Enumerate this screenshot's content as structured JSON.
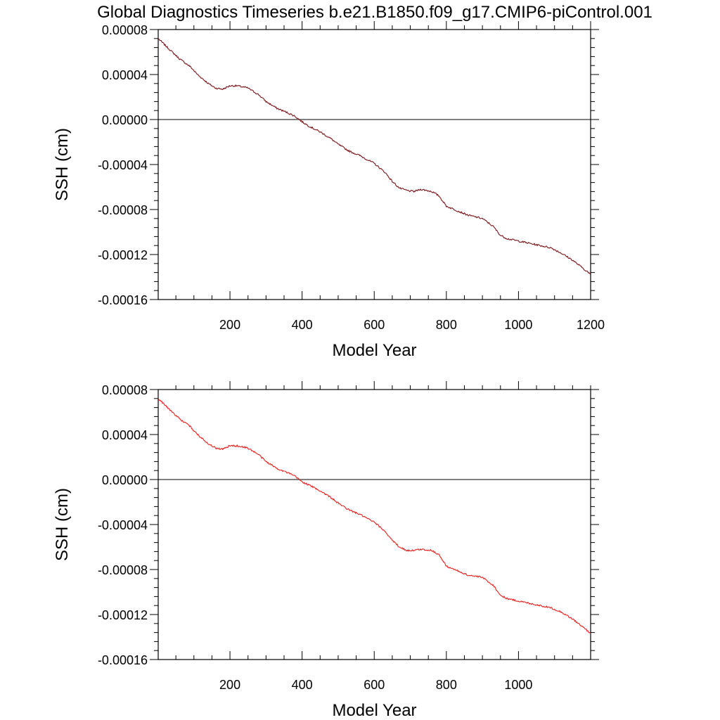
{
  "figure_title": "Global Diagnostics Timeseries b.e21.B1850.f09_g17.CMIP6-piControl.001",
  "chart_data": [
    {
      "type": "line",
      "title": "",
      "xlabel": "Model Year",
      "ylabel": "SSH (cm)",
      "xlim": [
        1,
        1200
      ],
      "ylim": [
        -0.00016,
        8e-05
      ],
      "xticks": [
        200,
        400,
        600,
        800,
        1000,
        1200
      ],
      "xtick_labels": [
        "200",
        "400",
        "600",
        "800",
        "1000",
        "1200"
      ],
      "yticks": [
        8e-05,
        4e-05,
        0.0,
        -4e-05,
        -8e-05,
        -0.00012,
        -0.00016
      ],
      "ytick_labels": [
        "0.00008",
        "0.00004",
        "0.00000",
        "-0.00004",
        "-0.00008",
        "-0.00012",
        "-0.00016"
      ],
      "reference_line_y": 0.0,
      "grid": false,
      "series": [
        {
          "name": "SSH",
          "color": "#7a1418",
          "x": [
            1,
            30,
            60,
            90,
            110,
            140,
            160,
            180,
            200,
            220,
            250,
            280,
            300,
            330,
            360,
            380,
            400,
            420,
            450,
            480,
            500,
            530,
            560,
            600,
            630,
            650,
            670,
            690,
            710,
            730,
            760,
            780,
            800,
            830,
            860,
            900,
            930,
            950,
            970,
            1000,
            1030,
            1060,
            1090,
            1120,
            1150,
            1170,
            1190,
            1200
          ],
          "values": [
            7.2e-05,
            6.3e-05,
            5.4e-05,
            4.7e-05,
            4e-05,
            3.2e-05,
            2.8e-05,
            2.7e-05,
            3e-05,
            3e-05,
            2.8e-05,
            2.2e-05,
            1.6e-05,
            1e-05,
            6e-06,
            3e-06,
            -2e-06,
            -6e-06,
            -1.1e-05,
            -1.7e-05,
            -2.2e-05,
            -2.8e-05,
            -3.2e-05,
            -3.9e-05,
            -4.7e-05,
            -5.5e-05,
            -6.1e-05,
            -6.3e-05,
            -6.4e-05,
            -6.2e-05,
            -6.4e-05,
            -6.8e-05,
            -7.7e-05,
            -8.1e-05,
            -8.5e-05,
            -8.8e-05,
            -9.5e-05,
            -0.000103,
            -0.000106,
            -0.000108,
            -0.00011,
            -0.000112,
            -0.000114,
            -0.000119,
            -0.000125,
            -0.00013,
            -0.000135,
            -0.000138
          ]
        }
      ]
    },
    {
      "type": "line",
      "title": "",
      "xlabel": "Model Year",
      "ylabel": "SSH (cm)",
      "xlim": [
        1,
        1200
      ],
      "ylim": [
        -0.00016,
        8e-05
      ],
      "xticks": [
        200,
        400,
        600,
        800,
        1000
      ],
      "xtick_labels": [
        "200",
        "400",
        "600",
        "800",
        "1000"
      ],
      "yticks": [
        8e-05,
        4e-05,
        0.0,
        -4e-05,
        -8e-05,
        -0.00012,
        -0.00016
      ],
      "ytick_labels": [
        "0.00008",
        "0.00004",
        "0.00000",
        "-0.00004",
        "-0.00008",
        "-0.00012",
        "-0.00016"
      ],
      "reference_line_y": 0.0,
      "grid": false,
      "series": [
        {
          "name": "SSH",
          "color": "#e8201c",
          "x": [
            1,
            30,
            60,
            90,
            110,
            140,
            160,
            180,
            200,
            220,
            250,
            280,
            300,
            330,
            360,
            380,
            400,
            420,
            450,
            480,
            500,
            530,
            560,
            600,
            630,
            650,
            670,
            690,
            710,
            730,
            760,
            780,
            800,
            830,
            860,
            900,
            930,
            950,
            970,
            1000,
            1030,
            1060,
            1090,
            1120,
            1150,
            1170,
            1190,
            1200
          ],
          "values": [
            7.2e-05,
            6.3e-05,
            5.4e-05,
            4.7e-05,
            4e-05,
            3.2e-05,
            2.8e-05,
            2.7e-05,
            3e-05,
            3e-05,
            2.8e-05,
            2.2e-05,
            1.6e-05,
            1e-05,
            6e-06,
            3e-06,
            -2e-06,
            -5e-06,
            -1e-05,
            -1.6e-05,
            -2.1e-05,
            -2.7e-05,
            -3.1e-05,
            -3.8e-05,
            -4.6e-05,
            -5.4e-05,
            -6e-05,
            -6.3e-05,
            -6.3e-05,
            -6.2e-05,
            -6.3e-05,
            -6.7e-05,
            -7.7e-05,
            -8.1e-05,
            -8.5e-05,
            -8.7e-05,
            -9.4e-05,
            -0.000103,
            -0.000106,
            -0.000108,
            -0.00011,
            -0.000112,
            -0.000114,
            -0.000118,
            -0.000124,
            -0.000129,
            -0.000134,
            -0.000137
          ]
        }
      ]
    }
  ]
}
